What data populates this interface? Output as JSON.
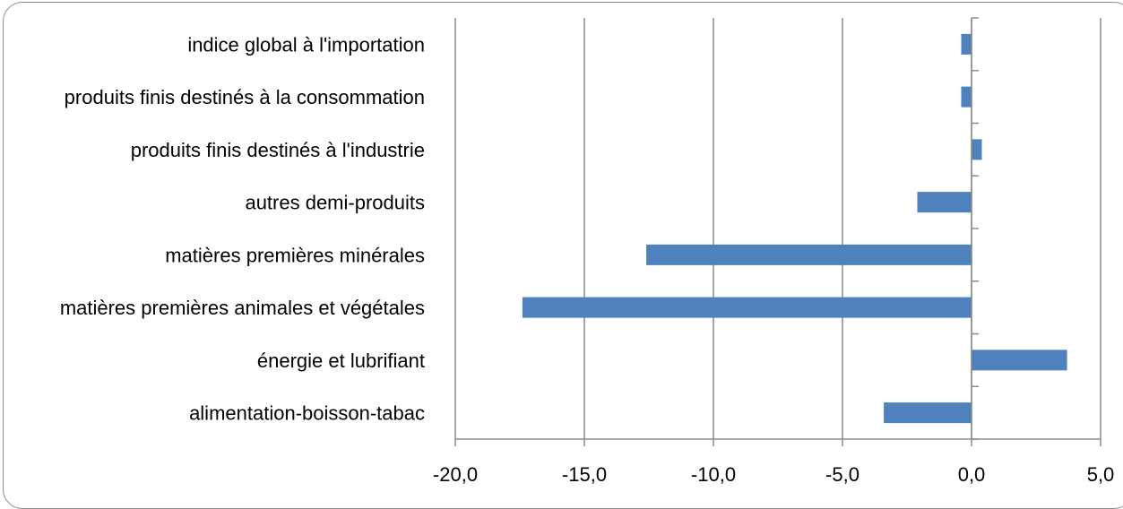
{
  "chart_data": {
    "type": "bar",
    "orientation": "horizontal",
    "categories": [
      "indice global à l'importation",
      "produits finis destinés à la consommation",
      "produits finis destinés à l'industrie",
      "autres demi-produits",
      "matières premières minérales",
      "matières premières animales et végétales",
      "énergie et lubrifiant",
      "alimentation-boisson-tabac"
    ],
    "values": [
      -0.4,
      -0.4,
      0.4,
      -2.1,
      -12.6,
      -17.4,
      3.7,
      -3.4
    ],
    "xlim": [
      -20,
      5
    ],
    "xticks": [
      -20,
      -15,
      -10,
      -5,
      0,
      5
    ],
    "xtick_labels": [
      "-20,0",
      "-15,0",
      "-10,0",
      "-5,0",
      "0,0",
      "5,0"
    ],
    "title": "",
    "xlabel": "",
    "ylabel": "",
    "grid": "vertical",
    "legend": "none",
    "bar_color": "#4f81bd",
    "grid_color": "#8c8c8c"
  }
}
